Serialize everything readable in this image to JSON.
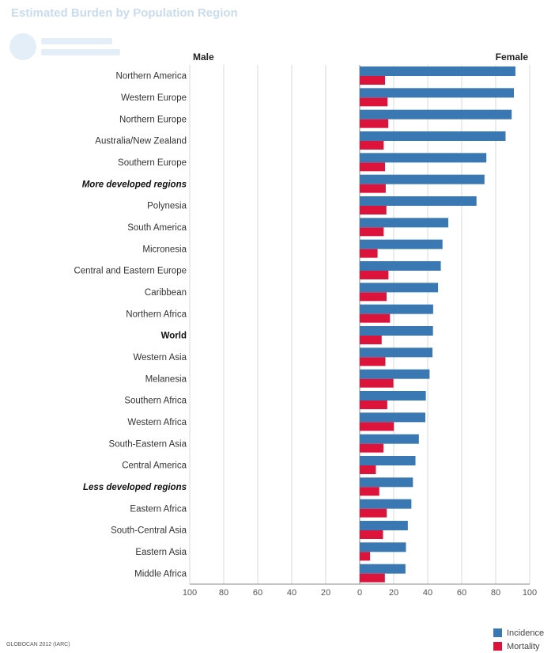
{
  "header": {
    "title": "Estimated Burden by Population Region"
  },
  "footer": {
    "source": "GLOBOCAN 2012 (IARC)"
  },
  "colors": {
    "incidence": "#3a78b3",
    "mortality": "#dc143c",
    "grid": "#d9d9d9",
    "axis": "#888888"
  },
  "chart_data": {
    "type": "bar",
    "orientation": "horizontal",
    "title": "",
    "xlabel": "",
    "ylabel": "",
    "left_label": "Male",
    "right_label": "Female",
    "xlim": [
      -100,
      100
    ],
    "x_ticks": [
      -100,
      -80,
      -60,
      -40,
      -20,
      0,
      20,
      40,
      60,
      80,
      100
    ],
    "x_tick_labels": [
      "100",
      "80",
      "60",
      "40",
      "20",
      "0",
      "20",
      "40",
      "60",
      "80",
      "100"
    ],
    "grid": true,
    "legend_position": "bottom-right",
    "categories": [
      "Northern America",
      "Western Europe",
      "Northern Europe",
      "Australia/New Zealand",
      "Southern Europe",
      "More developed regions",
      "Polynesia",
      "South America",
      "Micronesia",
      "Central and Eastern Europe",
      "Caribbean",
      "Northern Africa",
      "World",
      "Western Asia",
      "Melanesia",
      "Southern Africa",
      "Western Africa",
      "South-Eastern Asia",
      "Central America",
      "Less developed regions",
      "Eastern Africa",
      "South-Central Asia",
      "Eastern Asia",
      "Middle Africa"
    ],
    "emphasis": {
      "More developed regions": "bold-italic",
      "World": "bold",
      "Less developed regions": "bold-italic"
    },
    "series": [
      {
        "name": "Incidence",
        "values": [
          91.6,
          90.7,
          89.4,
          85.8,
          74.5,
          73.4,
          68.7,
          52.1,
          48.7,
          47.7,
          46.1,
          43.2,
          43.1,
          42.8,
          41.1,
          38.9,
          38.6,
          34.8,
          32.8,
          31.3,
          30.4,
          28.3,
          27.2,
          26.9
        ]
      },
      {
        "name": "Mortality",
        "values": [
          14.9,
          16.4,
          16.8,
          14.1,
          14.9,
          15.3,
          15.7,
          14.1,
          10.5,
          16.9,
          15.8,
          17.8,
          12.9,
          15.1,
          19.8,
          16.2,
          20.1,
          14.0,
          9.5,
          11.5,
          15.9,
          13.7,
          6.1,
          14.8
        ]
      }
    ]
  }
}
